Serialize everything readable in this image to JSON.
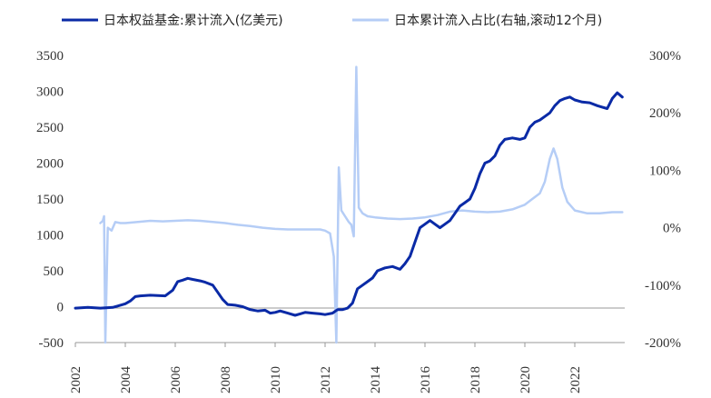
{
  "chart_data": {
    "type": "line",
    "title": "",
    "legend_position": "top",
    "grid": false,
    "x_range": [
      2002,
      2024
    ],
    "x_ticks": [
      "2002",
      "2004",
      "2006",
      "2008",
      "2010",
      "2012",
      "2014",
      "2016",
      "2018",
      "2020",
      "2022"
    ],
    "y_left": {
      "range": [
        -500,
        3500
      ],
      "ticks": [
        "3500",
        "3000",
        "2500",
        "2000",
        "1500",
        "1000",
        "500",
        "0",
        "-500"
      ]
    },
    "y_right": {
      "range": [
        -200,
        300
      ],
      "ticks": [
        "300%",
        "200%",
        "100%",
        "0%",
        "-100%",
        "-200%"
      ]
    },
    "series": [
      {
        "name": "日本权益基金:累计流入(亿美元)",
        "axis": "left",
        "color": "#0a2aa6",
        "width": 3,
        "points": [
          [
            2002.0,
            -20
          ],
          [
            2002.5,
            -10
          ],
          [
            2003.0,
            -20
          ],
          [
            2003.5,
            -10
          ],
          [
            2003.8,
            20
          ],
          [
            2004.0,
            40
          ],
          [
            2004.2,
            80
          ],
          [
            2004.4,
            140
          ],
          [
            2004.6,
            150
          ],
          [
            2005.0,
            160
          ],
          [
            2005.3,
            155
          ],
          [
            2005.6,
            150
          ],
          [
            2005.9,
            230
          ],
          [
            2006.1,
            350
          ],
          [
            2006.3,
            370
          ],
          [
            2006.5,
            395
          ],
          [
            2006.7,
            380
          ],
          [
            2007.0,
            360
          ],
          [
            2007.2,
            340
          ],
          [
            2007.5,
            300
          ],
          [
            2007.7,
            200
          ],
          [
            2007.9,
            100
          ],
          [
            2008.1,
            30
          ],
          [
            2008.4,
            20
          ],
          [
            2008.7,
            0
          ],
          [
            2009.0,
            -40
          ],
          [
            2009.3,
            -60
          ],
          [
            2009.6,
            -50
          ],
          [
            2009.8,
            -90
          ],
          [
            2010.0,
            -80
          ],
          [
            2010.2,
            -60
          ],
          [
            2010.5,
            -90
          ],
          [
            2010.8,
            -120
          ],
          [
            2011.0,
            -100
          ],
          [
            2011.2,
            -80
          ],
          [
            2011.5,
            -90
          ],
          [
            2011.8,
            -100
          ],
          [
            2012.0,
            -110
          ],
          [
            2012.3,
            -90
          ],
          [
            2012.5,
            -40
          ],
          [
            2012.7,
            -40
          ],
          [
            2012.9,
            -20
          ],
          [
            2013.1,
            50
          ],
          [
            2013.3,
            250
          ],
          [
            2013.5,
            300
          ],
          [
            2013.7,
            350
          ],
          [
            2013.9,
            400
          ],
          [
            2014.1,
            500
          ],
          [
            2014.4,
            540
          ],
          [
            2014.7,
            560
          ],
          [
            2015.0,
            520
          ],
          [
            2015.2,
            600
          ],
          [
            2015.4,
            700
          ],
          [
            2015.6,
            900
          ],
          [
            2015.8,
            1100
          ],
          [
            2016.0,
            1150
          ],
          [
            2016.2,
            1200
          ],
          [
            2016.4,
            1150
          ],
          [
            2016.6,
            1100
          ],
          [
            2016.8,
            1150
          ],
          [
            2017.0,
            1200
          ],
          [
            2017.2,
            1300
          ],
          [
            2017.4,
            1400
          ],
          [
            2017.6,
            1450
          ],
          [
            2017.8,
            1500
          ],
          [
            2018.0,
            1650
          ],
          [
            2018.2,
            1850
          ],
          [
            2018.4,
            2000
          ],
          [
            2018.6,
            2030
          ],
          [
            2018.8,
            2100
          ],
          [
            2019.0,
            2250
          ],
          [
            2019.2,
            2330
          ],
          [
            2019.5,
            2350
          ],
          [
            2019.8,
            2330
          ],
          [
            2020.0,
            2350
          ],
          [
            2020.2,
            2500
          ],
          [
            2020.4,
            2570
          ],
          [
            2020.6,
            2600
          ],
          [
            2020.8,
            2650
          ],
          [
            2021.0,
            2700
          ],
          [
            2021.2,
            2800
          ],
          [
            2021.4,
            2870
          ],
          [
            2021.6,
            2900
          ],
          [
            2021.8,
            2920
          ],
          [
            2022.0,
            2880
          ],
          [
            2022.3,
            2850
          ],
          [
            2022.6,
            2840
          ],
          [
            2022.9,
            2800
          ],
          [
            2023.1,
            2780
          ],
          [
            2023.3,
            2760
          ],
          [
            2023.5,
            2900
          ],
          [
            2023.7,
            2980
          ],
          [
            2023.9,
            2920
          ]
        ]
      },
      {
        "name": "日本累计流入占比(右轴,滚动12个月)",
        "axis": "right",
        "color": "#b5cdf6",
        "width": 2.5,
        "points": [
          [
            2003.0,
            8
          ],
          [
            2003.1,
            12
          ],
          [
            2003.15,
            20
          ],
          [
            2003.2,
            -200
          ],
          [
            2003.3,
            0
          ],
          [
            2003.45,
            -5
          ],
          [
            2003.6,
            10
          ],
          [
            2003.8,
            8
          ],
          [
            2004.0,
            8
          ],
          [
            2004.5,
            10
          ],
          [
            2005.0,
            12
          ],
          [
            2005.5,
            11
          ],
          [
            2006.0,
            12
          ],
          [
            2006.5,
            13
          ],
          [
            2007.0,
            12
          ],
          [
            2007.5,
            10
          ],
          [
            2008.0,
            8
          ],
          [
            2008.5,
            5
          ],
          [
            2009.0,
            3
          ],
          [
            2009.5,
            0
          ],
          [
            2010.0,
            -2
          ],
          [
            2010.5,
            -3
          ],
          [
            2011.0,
            -3
          ],
          [
            2011.5,
            -3
          ],
          [
            2011.8,
            -3
          ],
          [
            2012.0,
            -5
          ],
          [
            2012.2,
            -10
          ],
          [
            2012.35,
            -50
          ],
          [
            2012.45,
            -200
          ],
          [
            2012.55,
            105
          ],
          [
            2012.65,
            30
          ],
          [
            2012.8,
            20
          ],
          [
            2012.95,
            10
          ],
          [
            2013.05,
            5
          ],
          [
            2013.15,
            -15
          ],
          [
            2013.25,
            280
          ],
          [
            2013.35,
            35
          ],
          [
            2013.5,
            25
          ],
          [
            2013.7,
            20
          ],
          [
            2014.0,
            18
          ],
          [
            2014.5,
            16
          ],
          [
            2015.0,
            15
          ],
          [
            2015.5,
            16
          ],
          [
            2016.0,
            18
          ],
          [
            2016.5,
            22
          ],
          [
            2017.0,
            28
          ],
          [
            2017.5,
            30
          ],
          [
            2018.0,
            28
          ],
          [
            2018.5,
            27
          ],
          [
            2019.0,
            28
          ],
          [
            2019.5,
            32
          ],
          [
            2020.0,
            40
          ],
          [
            2020.3,
            50
          ],
          [
            2020.6,
            60
          ],
          [
            2020.8,
            80
          ],
          [
            2021.0,
            120
          ],
          [
            2021.15,
            138
          ],
          [
            2021.3,
            120
          ],
          [
            2021.5,
            70
          ],
          [
            2021.7,
            45
          ],
          [
            2022.0,
            30
          ],
          [
            2022.5,
            25
          ],
          [
            2023.0,
            25
          ],
          [
            2023.5,
            27
          ],
          [
            2023.9,
            27
          ]
        ]
      }
    ]
  }
}
